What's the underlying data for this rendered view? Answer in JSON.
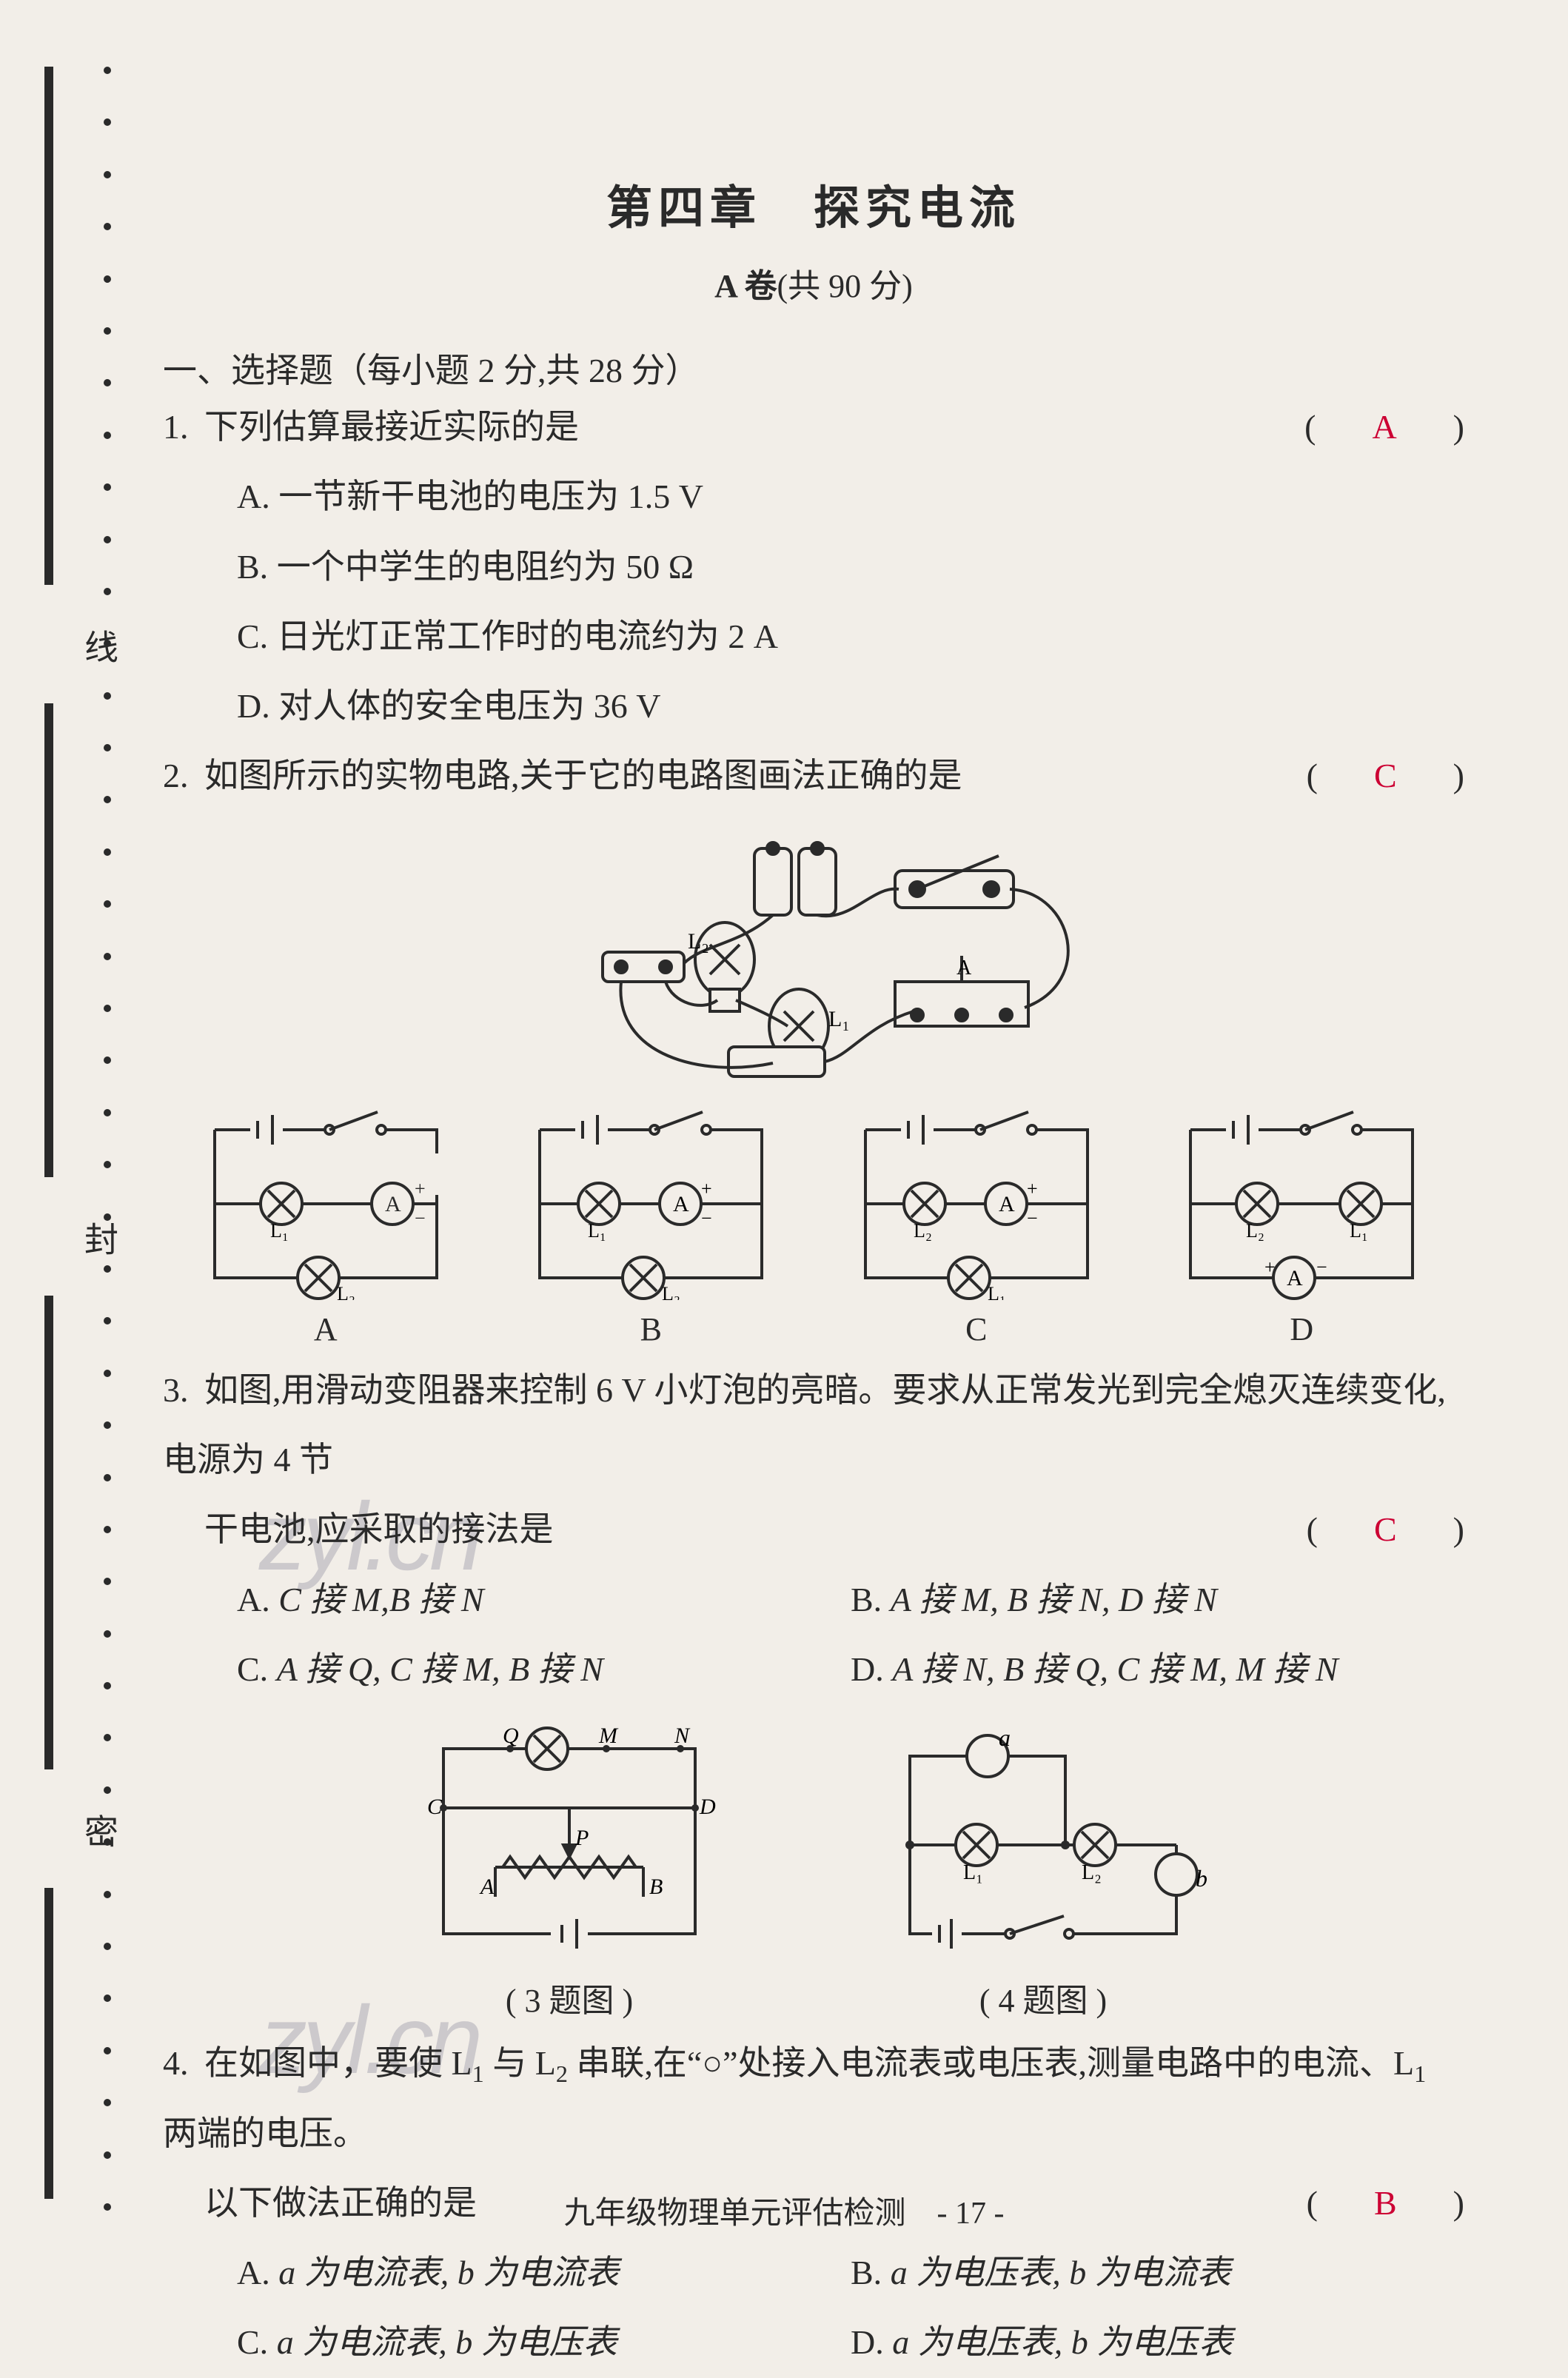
{
  "colors": {
    "paper": "#f2eee8",
    "ink": "#2a2a2a",
    "answer": "#cc0033",
    "watermark": "rgba(90,90,120,0.25)"
  },
  "binding": {
    "labels": [
      "线",
      "封",
      "密"
    ]
  },
  "title": "第四章　探究电流",
  "subtitle_prefix": "A 卷",
  "subtitle_note": "(共 90 分)",
  "section1": "一、选择题（每小题 2 分,共 28 分）",
  "q1": {
    "num": "1.",
    "stem": "下列估算最接近实际的是",
    "answer": "A",
    "opts": {
      "A": "一节新干电池的电压为 1.5 V",
      "B": "一个中学生的电阻约为 50 Ω",
      "C": "日光灯正常工作时的电流约为 2 A",
      "D": "对人体的安全电压为 36 V"
    }
  },
  "q2": {
    "num": "2.",
    "stem": "如图所示的实物电路,关于它的电路图画法正确的是",
    "answer": "C",
    "caps": {
      "A": "A",
      "B": "B",
      "C": "C",
      "D": "D"
    }
  },
  "q3": {
    "num": "3.",
    "stem_line1": "如图,用滑动变阻器来控制 6 V 小灯泡的亮暗。要求从正常发光到完全熄灭连续变化,电源为 4 节",
    "stem_line2": "干电池,应采取的接法是",
    "answer": "C",
    "opts": {
      "A_pre": "A. ",
      "A_body": "C 接 M,B 接 N",
      "B_pre": "B. ",
      "B_body": "A 接 M, B 接 N, D 接 N",
      "C_pre": "C. ",
      "C_body": "A 接 Q, C 接 M, B 接 N",
      "D_pre": "D. ",
      "D_body": "A 接 N, B 接 Q, C 接 M, M 接 N"
    },
    "figcap": "( 3 题图 )"
  },
  "q4": {
    "num": "4.",
    "stem_a": "在如图中，要使 L",
    "stem_b": " 与 L",
    "stem_c": " 串联,在“○”处接入电流表或电压表,测量电路中的电流、L",
    "stem_d": " 两端的电压。",
    "stem_line2": "以下做法正确的是",
    "answer": "B",
    "opts": {
      "A": "a 为电流表, b 为电流表",
      "B": "a 为电压表, b 为电流表",
      "C": "a 为电流表, b 为电压表",
      "D": "a 为电压表, b 为电压表"
    },
    "figcap": "( 4 题图 )"
  },
  "footer": "九年级物理单元评估检测　- 17 -",
  "watermark": "zyl.cn"
}
